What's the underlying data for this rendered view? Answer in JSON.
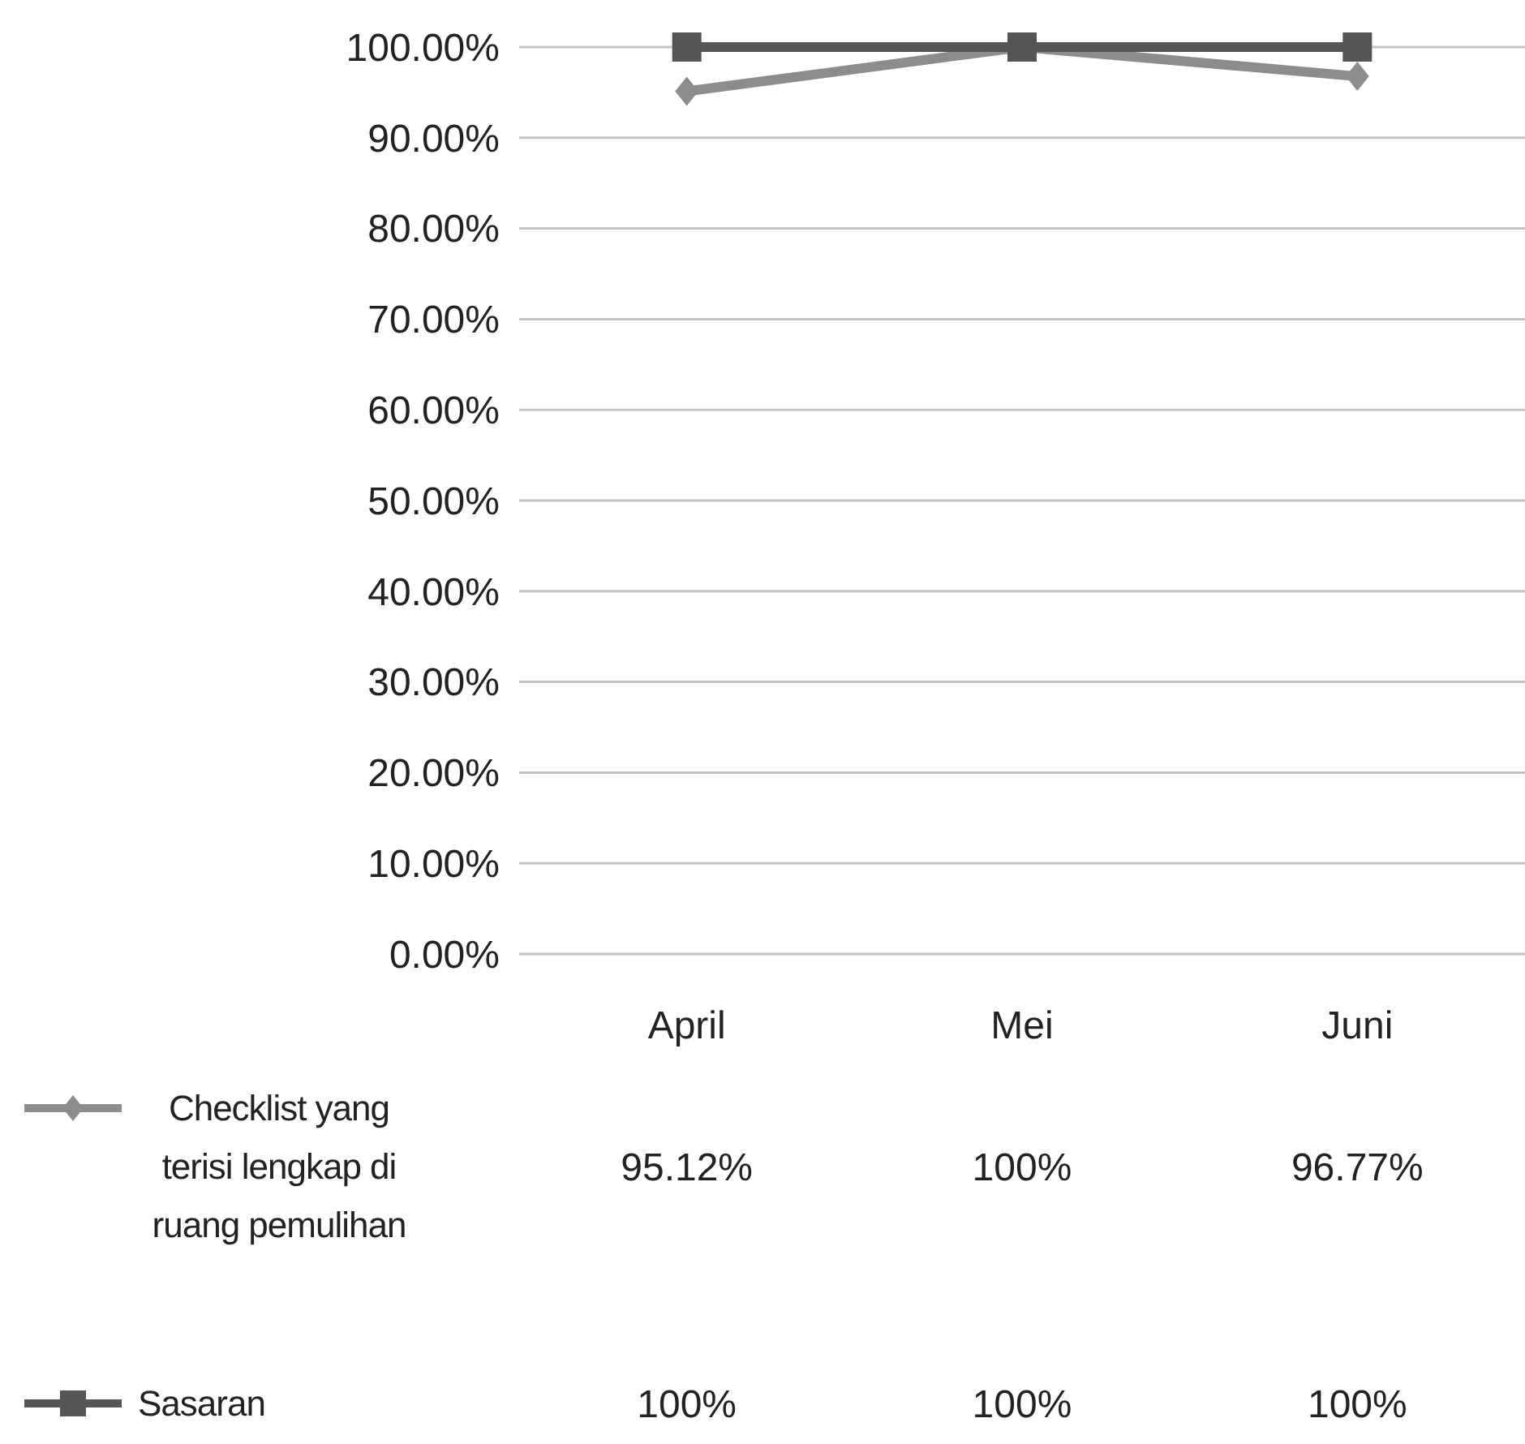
{
  "chart_data": {
    "type": "line",
    "categories": [
      "April",
      "Mei",
      "Juni"
    ],
    "series": [
      {
        "name": "Checklist yang terisi lengkap di ruang pemulihan",
        "color": "#8c8c8c",
        "marker": "diamond",
        "values": [
          95.12,
          100,
          96.77
        ],
        "value_labels": [
          "95.12%",
          "100%",
          "96.77%"
        ]
      },
      {
        "name": "Sasaran",
        "color": "#555555",
        "marker": "square",
        "values": [
          100,
          100,
          100
        ],
        "value_labels": [
          "100%",
          "100%",
          "100%"
        ]
      }
    ],
    "ylim": [
      0,
      100
    ],
    "yticks": [
      {
        "value": 0,
        "label": "0.00%"
      },
      {
        "value": 10,
        "label": "10.00%"
      },
      {
        "value": 20,
        "label": "20.00%"
      },
      {
        "value": 30,
        "label": "30.00%"
      },
      {
        "value": 40,
        "label": "40.00%"
      },
      {
        "value": 50,
        "label": "50.00%"
      },
      {
        "value": 60,
        "label": "60.00%"
      },
      {
        "value": 70,
        "label": "70.00%"
      },
      {
        "value": 80,
        "label": "80.00%"
      },
      {
        "value": 90,
        "label": "90.00%"
      },
      {
        "value": 100,
        "label": "100.00%"
      }
    ],
    "grid": "y",
    "legend": "bottom"
  }
}
